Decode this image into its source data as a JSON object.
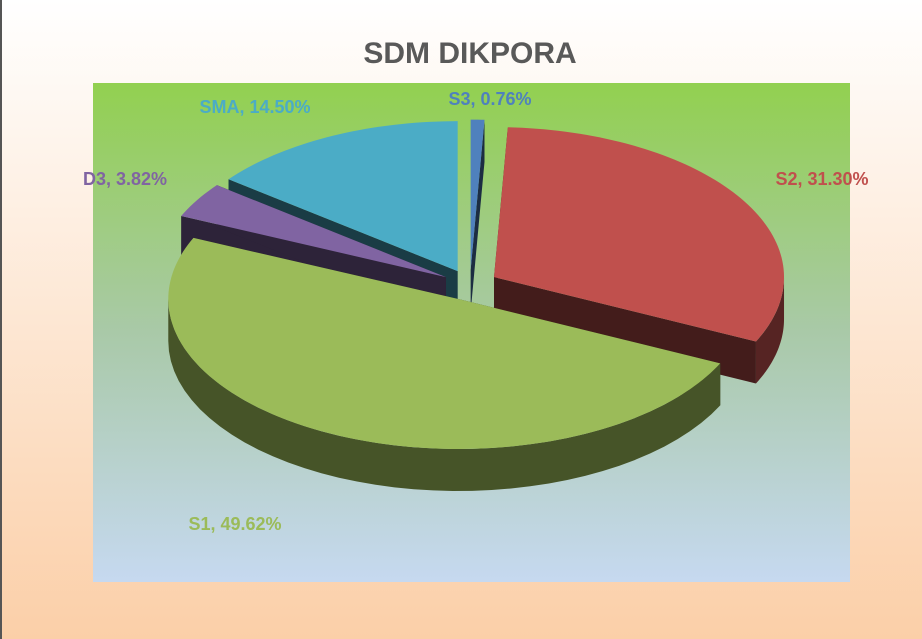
{
  "chart_data": {
    "type": "pie",
    "title": "SDM DIKPORA",
    "categories": [
      "S3",
      "S2",
      "S1",
      "D3",
      "SMA"
    ],
    "values": [
      0.76,
      31.3,
      49.62,
      3.82,
      14.5
    ],
    "value_labels": [
      "S3, 0.76%",
      "S2, 31.30%",
      "S1, 49.62%",
      "D3, 3.82%",
      "SMA, 14.50%"
    ],
    "colors": [
      "#4f81bd",
      "#c0504d",
      "#9bbb59",
      "#8064a2",
      "#4bacc6"
    ]
  }
}
